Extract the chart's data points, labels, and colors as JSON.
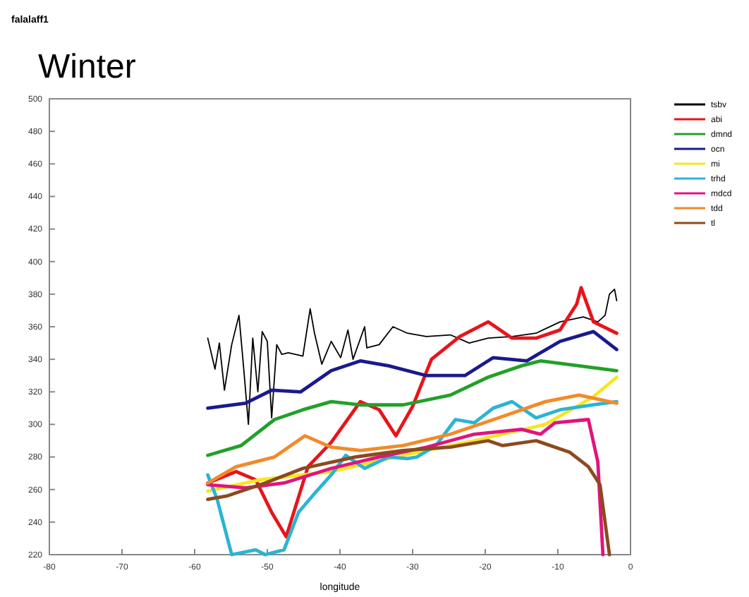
{
  "chart_data": {
    "type": "line",
    "title": "Winter",
    "subtitle": "falalaff1",
    "xlabel": "longitude",
    "xlim": [
      -80,
      0
    ],
    "xticks": [
      -80,
      -70,
      -60,
      -50,
      -40,
      -30,
      -20,
      -10,
      0
    ],
    "ylim": [
      220,
      500
    ],
    "yticks": [
      220,
      240,
      260,
      280,
      300,
      320,
      340,
      360,
      380,
      400,
      420,
      440,
      460,
      480,
      500
    ],
    "grid": false,
    "legend": "right",
    "marker": "none",
    "line_style": "solid",
    "series": [
      {
        "name": "tsbv",
        "color": "#000000",
        "x": [
          -58.2,
          -57.2,
          -56.6,
          -55.9,
          -54.9,
          -53.9,
          -53.3,
          -52.6,
          -52.0,
          -51.3,
          -50.7,
          -50.0,
          -49.4,
          -48.7,
          -48.0,
          -47.1,
          -45.1,
          -44.1,
          -43.5,
          -42.5,
          -41.2,
          -39.9,
          -38.9,
          -38.2,
          -36.6,
          -36.3,
          -34.6,
          -32.7,
          -30.7,
          -28.1,
          -24.8,
          -22.2,
          -19.6,
          -16.3,
          -13.0,
          -9.7,
          -6.5,
          -4.5,
          -3.5,
          -2.9,
          -2.2,
          -1.9
        ],
        "values": [
          353,
          334,
          350,
          321,
          349,
          367,
          337,
          300,
          353,
          320,
          357,
          351,
          304,
          349,
          343,
          344,
          342,
          371,
          356,
          337,
          351,
          341,
          358,
          340,
          360,
          347,
          349,
          360,
          356,
          354,
          355,
          350,
          353,
          354,
          356,
          363,
          366,
          363,
          367,
          380,
          383,
          376
        ]
      },
      {
        "name": "abi",
        "color": "#e8141b",
        "x": [
          -58.2,
          -54.3,
          -51.6,
          -49.4,
          -47.4,
          -44.4,
          -41.2,
          -37.2,
          -34.6,
          -32.3,
          -30.0,
          -27.4,
          -23.5,
          -19.6,
          -16.3,
          -13.0,
          -9.7,
          -7.4,
          -6.8,
          -5.1,
          -1.9
        ],
        "values": [
          264,
          271,
          266,
          246,
          231,
          274,
          289,
          314,
          309,
          293,
          311,
          340,
          354,
          363,
          353,
          353,
          358,
          374,
          384,
          363,
          356
        ]
      },
      {
        "name": "dmnd",
        "color": "#22a02a",
        "x": [
          -58.2,
          -53.6,
          -49.0,
          -45.1,
          -41.2,
          -37.2,
          -31.3,
          -24.8,
          -19.6,
          -15.0,
          -12.4,
          -7.1,
          -1.9
        ],
        "values": [
          281,
          287,
          303,
          309,
          314,
          312,
          312,
          318,
          329,
          336,
          339,
          336,
          333
        ]
      },
      {
        "name": "ocn",
        "color": "#1a1a8c",
        "x": [
          -58.2,
          -53.0,
          -49.4,
          -45.4,
          -41.2,
          -37.2,
          -33.3,
          -28.1,
          -22.8,
          -18.9,
          -14.3,
          -9.7,
          -5.1,
          -1.9
        ],
        "values": [
          310,
          313,
          321,
          320,
          333,
          339,
          336,
          330,
          330,
          341,
          339,
          351,
          357,
          346
        ]
      },
      {
        "name": "mi",
        "color": "#f5e623",
        "x": [
          -58.2,
          -51.0,
          -41.2,
          -31.3,
          -21.5,
          -11.7,
          -5.1,
          -1.9
        ],
        "values": [
          259,
          266,
          271,
          281,
          290,
          300,
          317,
          329
        ]
      },
      {
        "name": "trhd",
        "color": "#2ab4d4",
        "x": [
          -58.2,
          -56.9,
          -54.9,
          -51.6,
          -50.3,
          -47.7,
          -45.7,
          -43.8,
          -41.2,
          -39.2,
          -36.6,
          -33.3,
          -30.7,
          -29.4,
          -26.8,
          -24.1,
          -21.5,
          -18.9,
          -16.3,
          -13.0,
          -9.7,
          -5.1,
          -1.9
        ],
        "values": [
          269,
          254,
          220,
          223,
          220,
          223,
          246,
          256,
          269,
          281,
          273,
          280,
          279,
          280,
          287,
          303,
          301,
          310,
          314,
          304,
          309,
          312,
          314
        ]
      },
      {
        "name": "mdcd",
        "color": "#e0147e",
        "x": [
          -58.2,
          -53.0,
          -47.7,
          -41.2,
          -34.6,
          -28.1,
          -21.5,
          -15.0,
          -12.4,
          -10.4,
          -5.8,
          -4.5,
          -3.8
        ],
        "values": [
          263,
          261,
          264,
          273,
          280,
          286,
          294,
          297,
          294,
          301,
          303,
          277,
          220
        ]
      },
      {
        "name": "tdd",
        "color": "#f28a2a",
        "x": [
          -58.2,
          -54.3,
          -49.0,
          -44.8,
          -41.2,
          -37.2,
          -31.3,
          -24.8,
          -18.2,
          -11.7,
          -7.1,
          -1.9
        ],
        "values": [
          264,
          274,
          280,
          293,
          286,
          284,
          287,
          294,
          304,
          314,
          318,
          313
        ]
      },
      {
        "name": "tl",
        "color": "#8b4a1e",
        "x": [
          -58.2,
          -55.6,
          -50.3,
          -45.1,
          -37.9,
          -31.3,
          -24.8,
          -19.6,
          -17.6,
          -13.0,
          -8.4,
          -5.8,
          -4.2,
          -2.9
        ],
        "values": [
          254,
          256,
          264,
          273,
          280,
          284,
          286,
          290,
          287,
          290,
          283,
          274,
          263,
          220
        ]
      }
    ]
  }
}
